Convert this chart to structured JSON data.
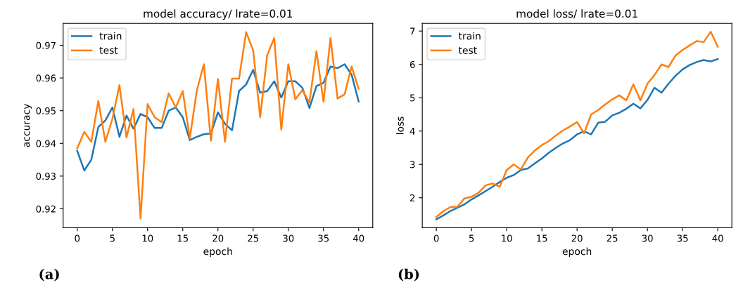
{
  "chart_data": [
    {
      "type": "line",
      "title": "model accuracy/ lrate=0.01",
      "xlabel": "epoch",
      "ylabel": "accuracy",
      "annotations": [
        "(a)"
      ],
      "legend": "top left",
      "grid": false,
      "x": [
        0,
        1,
        2,
        3,
        4,
        5,
        6,
        7,
        8,
        9,
        10,
        11,
        12,
        13,
        14,
        15,
        16,
        17,
        18,
        19,
        20,
        21,
        22,
        23,
        24,
        25,
        26,
        27,
        28,
        29,
        30,
        31,
        32,
        33,
        34,
        35,
        36,
        37,
        38,
        39,
        40
      ],
      "xlim": [
        -2,
        42
      ],
      "ylim": [
        0.9142,
        0.9767
      ],
      "xticks": [
        0,
        5,
        10,
        15,
        20,
        25,
        30,
        35,
        40
      ],
      "yticks": [
        0.92,
        0.93,
        0.94,
        0.95,
        0.96,
        0.97
      ],
      "series": [
        {
          "name": "train",
          "color": "#1f77b4",
          "values": [
            0.9377,
            0.9317,
            0.935,
            0.945,
            0.947,
            0.951,
            0.942,
            0.9485,
            0.9445,
            0.949,
            0.948,
            0.9447,
            0.9447,
            0.95,
            0.951,
            0.948,
            0.941,
            0.942,
            0.9428,
            0.943,
            0.9495,
            0.946,
            0.944,
            0.956,
            0.958,
            0.9625,
            0.9555,
            0.956,
            0.959,
            0.954,
            0.959,
            0.959,
            0.957,
            0.9508,
            0.9575,
            0.9585,
            0.9635,
            0.963,
            0.9642,
            0.961,
            0.9528
          ]
        },
        {
          "name": "test",
          "color": "#ff7f0e",
          "values": [
            0.9385,
            0.9435,
            0.9405,
            0.953,
            0.9405,
            0.9475,
            0.9578,
            0.9418,
            0.9505,
            0.917,
            0.952,
            0.948,
            0.9465,
            0.9553,
            0.951,
            0.956,
            0.9415,
            0.9562,
            0.9642,
            0.9408,
            0.9597,
            0.9405,
            0.9598,
            0.9598,
            0.974,
            0.9685,
            0.948,
            0.967,
            0.9722,
            0.9442,
            0.9642,
            0.9535,
            0.9563,
            0.9525,
            0.9682,
            0.9527,
            0.9722,
            0.9537,
            0.955,
            0.9635,
            0.9567
          ]
        }
      ]
    },
    {
      "type": "line",
      "title": "model loss/ lrate=0.01",
      "xlabel": "epoch",
      "ylabel": "loss",
      "annotations": [
        "(b)"
      ],
      "legend": "top left",
      "grid": false,
      "x": [
        0,
        1,
        2,
        3,
        4,
        5,
        6,
        7,
        8,
        9,
        10,
        11,
        12,
        13,
        14,
        15,
        16,
        17,
        18,
        19,
        20,
        21,
        22,
        23,
        24,
        25,
        26,
        27,
        28,
        29,
        30,
        31,
        32,
        33,
        34,
        35,
        36,
        37,
        38,
        39,
        40
      ],
      "xlim": [
        -2,
        42
      ],
      "ylim": [
        1.1,
        7.23
      ],
      "xticks": [
        0,
        5,
        10,
        15,
        20,
        25,
        30,
        35,
        40
      ],
      "yticks": [
        2,
        3,
        4,
        5,
        6,
        7
      ],
      "series": [
        {
          "name": "train",
          "color": "#1f77b4",
          "values": [
            1.35,
            1.47,
            1.6,
            1.7,
            1.8,
            1.95,
            2.07,
            2.2,
            2.33,
            2.47,
            2.6,
            2.68,
            2.83,
            2.88,
            3.03,
            3.18,
            3.35,
            3.5,
            3.63,
            3.73,
            3.9,
            3.99,
            3.9,
            4.25,
            4.28,
            4.47,
            4.55,
            4.67,
            4.82,
            4.68,
            4.93,
            5.3,
            5.15,
            5.42,
            5.66,
            5.85,
            5.98,
            6.07,
            6.13,
            6.09,
            6.16
          ]
        },
        {
          "name": "test",
          "color": "#ff7f0e",
          "values": [
            1.42,
            1.6,
            1.72,
            1.73,
            1.98,
            2.03,
            2.15,
            2.37,
            2.43,
            2.33,
            2.83,
            3.0,
            2.85,
            3.2,
            3.42,
            3.58,
            3.7,
            3.87,
            4.02,
            4.14,
            4.27,
            3.93,
            4.5,
            4.63,
            4.8,
            4.95,
            5.07,
            4.92,
            5.4,
            4.92,
            5.42,
            5.68,
            6.0,
            5.92,
            6.27,
            6.43,
            6.57,
            6.7,
            6.67,
            6.98,
            6.53
          ]
        }
      ]
    }
  ]
}
